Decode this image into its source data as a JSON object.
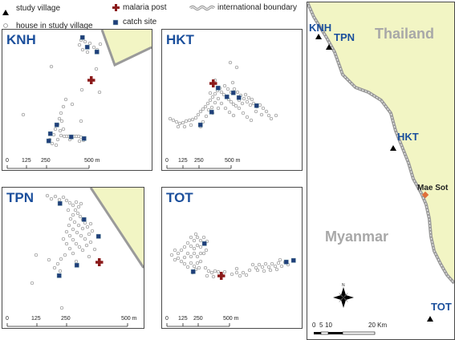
{
  "legend": {
    "study_village": "study village",
    "malaria_post": "malaria post",
    "international_boundary": "international boundary",
    "house": "house in study village",
    "catch_site": "catch site"
  },
  "colors": {
    "thailand_fill": "#f2f5c4",
    "boundary": "#9a9a9a",
    "label_blue": "#1b4f9c",
    "country_label": "#a8a8a8",
    "malaria_post": "#8b1a1a",
    "catch_site": "#1f3f7a",
    "mae_sot": "#e0703a"
  },
  "panels": {
    "knh": {
      "title": "KNH",
      "ticks": [
        "0",
        "125",
        "250",
        "500 m"
      ]
    },
    "hkt": {
      "title": "HKT",
      "ticks": [
        "0",
        "125",
        "250",
        "500 m"
      ]
    },
    "tpn": {
      "title": "TPN",
      "ticks": [
        "0",
        "125",
        "250",
        "500 m"
      ]
    },
    "tot": {
      "title": "TOT",
      "ticks": [
        "0",
        "125",
        "250",
        "500 m"
      ]
    }
  },
  "overview": {
    "countries": {
      "thailand": "Thailand",
      "myanmar": "Myanmar"
    },
    "villages": {
      "knh": "KNH",
      "tpn": "TPN",
      "hkt": "HKT",
      "tot": "TOT"
    },
    "town": "Mae Sot",
    "scale": [
      "0",
      "5",
      "10",
      "20 Km"
    ],
    "north": "N"
  }
}
